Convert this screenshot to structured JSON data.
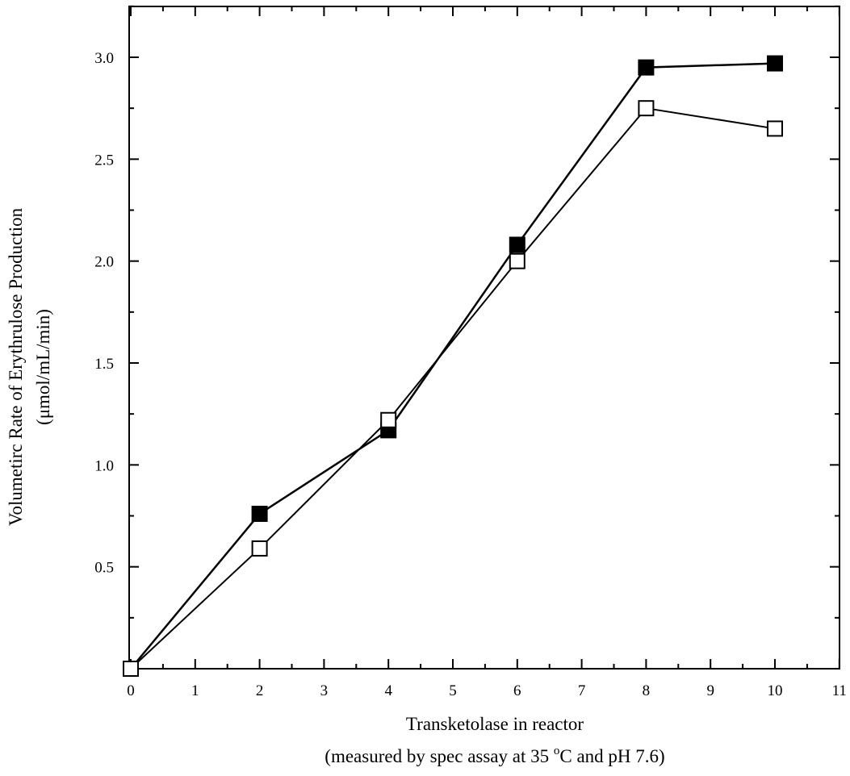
{
  "chart_data": {
    "type": "line",
    "title": "",
    "xlabel": "Transketolase in reactor",
    "xlabel_sub_pre": "(measured by spec assay at 35 ",
    "xlabel_sub_sup": "o",
    "xlabel_sub_post": "C and pH 7.6)",
    "ylabel": "Volumetirc Rate of Erythrulose Production",
    "ylabel_unit": "(μmol/mL/min)",
    "xlim": [
      0,
      11
    ],
    "ylim": [
      0,
      3.25
    ],
    "x_ticks": [
      0,
      1,
      2,
      3,
      4,
      5,
      6,
      7,
      8,
      9,
      10,
      11
    ],
    "x_tick_labels": [
      "0",
      "1",
      "2",
      "3",
      "4",
      "5",
      "6",
      "7",
      "8",
      "9",
      "10",
      "11"
    ],
    "y_ticks": [
      0.5,
      1.0,
      1.5,
      2.0,
      2.5,
      3.0
    ],
    "y_tick_labels": [
      "0.5",
      "1.0",
      "1.5",
      "2.0",
      "2.5",
      "3.0"
    ],
    "grid": false,
    "legend": "none",
    "series": [
      {
        "marker": "filled-square",
        "color": "#000000",
        "x": [
          0,
          2,
          4,
          6,
          8,
          10
        ],
        "y": [
          0.0,
          0.76,
          1.17,
          2.08,
          2.95,
          2.97
        ]
      },
      {
        "marker": "open-square",
        "color": "#000000",
        "x": [
          0,
          2,
          4,
          6,
          8,
          10
        ],
        "y": [
          0.0,
          0.59,
          1.22,
          2.0,
          2.75,
          2.65
        ]
      }
    ]
  }
}
